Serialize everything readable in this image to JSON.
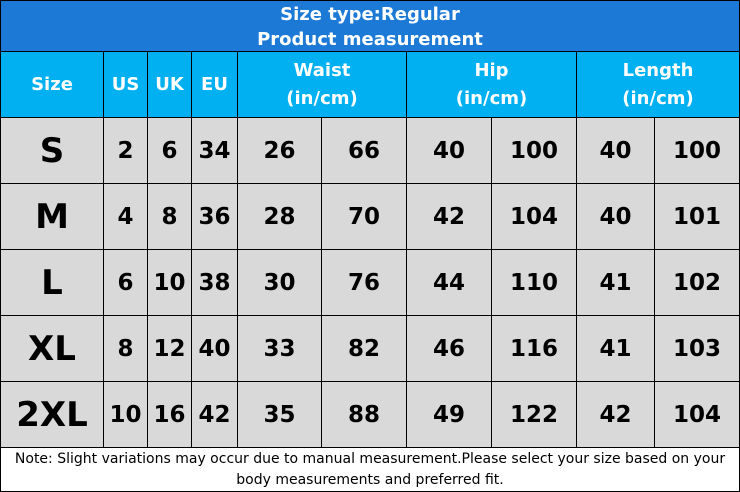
{
  "header": {
    "title_lines": [
      "Size type:Regular",
      "Product measurement"
    ]
  },
  "table": {
    "columns": [
      {
        "label": "Size"
      },
      {
        "label": "US"
      },
      {
        "label": "UK"
      },
      {
        "label": "EU"
      },
      {
        "label": "Waist",
        "unit": "(in/cm)"
      },
      {
        "label": "Hip",
        "unit": "(in/cm)"
      },
      {
        "label": "Length",
        "unit": "(in/cm)"
      }
    ],
    "rows": [
      [
        "S",
        2,
        6,
        34,
        26,
        66,
        40,
        100,
        40,
        100
      ],
      [
        "M",
        4,
        8,
        36,
        28,
        70,
        42,
        104,
        40,
        101
      ],
      [
        "L",
        6,
        10,
        38,
        30,
        76,
        44,
        110,
        41,
        102
      ],
      [
        "XL",
        8,
        12,
        40,
        33,
        82,
        46,
        116,
        41,
        103
      ],
      [
        "2XL",
        10,
        16,
        42,
        35,
        88,
        49,
        122,
        42,
        104
      ]
    ]
  },
  "note": "Note: Slight variations may occur due to manual measurement.Please select your size based on your body measurements and preferred fit."
}
